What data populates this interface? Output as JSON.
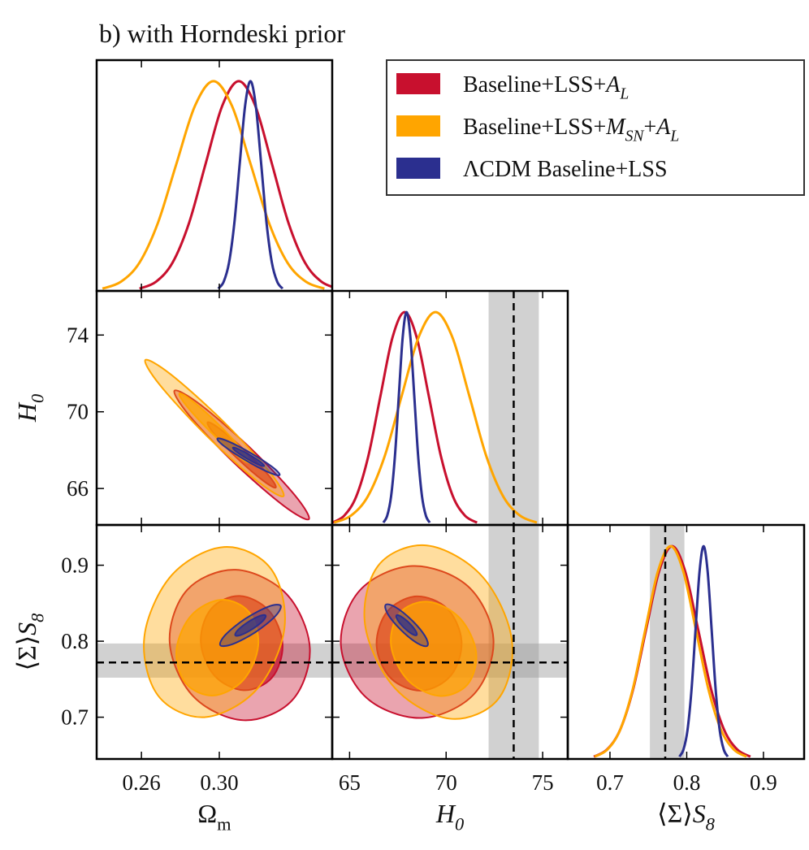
{
  "chart_data": {
    "type": "corner",
    "title": "b) with Horndeski prior",
    "legend": "upper right",
    "density_ylim": [
      0,
      1.1
    ],
    "params": [
      {
        "label": [
          {
            "text": "Ω",
            "sub": "m"
          }
        ],
        "lim": [
          0.237,
          0.358
        ],
        "xticks": [
          0.26,
          {
            "value": 0.3,
            "label": "0.30"
          }
        ]
      },
      {
        "label": [
          {
            "text": "H",
            "sub": "0",
            "italic": true
          }
        ],
        "lim": [
          64.1,
          76.3
        ],
        "xticks": [
          65,
          70,
          75
        ],
        "yticks": [
          66,
          70,
          74
        ],
        "reference": {
          "value": 73.5,
          "band": [
            72.2,
            74.8
          ],
          "axes": [
            "x"
          ]
        }
      },
      {
        "label": [
          {
            "text": "⟨Σ⟩"
          },
          {
            "text": "S",
            "sub": "8",
            "italic": true
          }
        ],
        "lim": [
          0.645,
          0.953
        ],
        "xticks": [
          0.7,
          0.8,
          0.9
        ],
        "yticks": [
          0.7,
          0.8,
          0.9
        ],
        "reference": {
          "value": 0.772,
          "band": [
            0.752,
            0.797
          ],
          "axes": [
            "x",
            "y"
          ]
        }
      }
    ],
    "series": [
      {
        "name": [
          {
            "text": "Baseline+LSS+"
          },
          {
            "text": "A",
            "sub": "L",
            "italic": true
          }
        ],
        "color": "#c8102e",
        "marginals": [
          {
            "x": [
              0.259,
              0.2675,
              0.276,
              0.2845,
              0.293,
              0.3015,
              0.31,
              0.3185,
              0.327,
              0.3355,
              0.344,
              0.3525,
              0.361
            ],
            "values": [
              0.011,
              0.044,
              0.135,
              0.325,
              0.607,
              0.882,
              1,
              0.882,
              0.607,
              0.325,
              0.135,
              0.044,
              0.011
            ]
          },
          {
            "x": [
              64.1,
              64.725,
              65.35,
              65.975,
              66.6,
              67.225,
              67.85,
              68.475,
              69.1,
              69.725,
              70.35,
              70.975,
              71.6
            ],
            "values": [
              0.011,
              0.044,
              0.135,
              0.325,
              0.607,
              0.882,
              1,
              0.882,
              0.607,
              0.325,
              0.135,
              0.044,
              0.011
            ]
          },
          {
            "x": [
              0.679,
              0.696,
              0.713,
              0.73,
              0.747,
              0.764,
              0.781,
              0.798,
              0.815,
              0.832,
              0.849,
              0.866,
              0.883
            ],
            "values": [
              0.011,
              0.044,
              0.135,
              0.325,
              0.607,
              0.882,
              1,
              0.882,
              0.607,
              0.325,
              0.135,
              0.044,
              0.011
            ]
          }
        ],
        "contours": [
          {
            "levels": [
              {
                "x": [
                  0.346,
                  0.3387,
                  0.3155,
                  0.2899,
                  0.277,
                  0.2843,
                  0.3075,
                  0.3331
                ],
                "y": [
                  64.4,
                  65.66,
                  68.15,
                  70.4,
                  71.1,
                  69.84,
                  67.35,
                  65.1
                ]
              },
              {
                "x": [
                  0.329,
                  0.3253,
                  0.3135,
                  0.3005,
                  0.294,
                  0.2977,
                  0.3095,
                  0.3225
                ],
                "y": [
                  66.05,
                  66.69,
                  67.95,
                  69.09,
                  69.45,
                  68.81,
                  67.55,
                  66.41
                ]
              }
            ]
          },
          {
            "levels": [
              {
                "x": [
                  0.3465,
                  0.3345,
                  0.3085,
                  0.2836,
                  0.2745,
                  0.2865,
                  0.3125,
                  0.3374
                ],
                "y": [
                  0.791,
                  0.8622,
                  0.894,
                  0.8678,
                  0.799,
                  0.7278,
                  0.696,
                  0.7222
                ]
              },
              {
                "x": [
                  0.3325,
                  0.3256,
                  0.3105,
                  0.2959,
                  0.2905,
                  0.2974,
                  0.3125,
                  0.3271
                ],
                "y": [
                  0.7955,
                  0.8399,
                  0.8595,
                  0.8428,
                  0.7995,
                  0.7551,
                  0.7355,
                  0.7522
                ]
              }
            ]
          },
          {
            "levels": [
              {
                "x": [
                  72.45,
                  71.12,
                  68.25,
                  65.53,
                  64.55,
                  65.88,
                  68.75,
                  71.47
                ],
                "y": [
                  0.803,
                  0.8725,
                  0.899,
                  0.8669,
                  0.795,
                  0.7255,
                  0.699,
                  0.7311
                ]
              },
              {
                "x": [
                  70.8,
                  70.05,
                  68.45,
                  66.94,
                  66.4,
                  67.15,
                  68.75,
                  70.26
                ],
                "y": [
                  0.8,
                  0.843,
                  0.859,
                  0.8387,
                  0.794,
                  0.751,
                  0.735,
                  0.7553
                ]
              }
            ]
          }
        ]
      },
      {
        "name": [
          {
            "text": "Baseline+LSS+"
          },
          {
            "text": "M",
            "sub": "SN",
            "italic": true
          },
          {
            "text": "+"
          },
          {
            "text": "A",
            "sub": "L",
            "italic": true
          }
        ],
        "color": "#ffa500",
        "marginals": [
          {
            "x": [
              0.24,
              0.2495,
              0.259,
              0.2685,
              0.278,
              0.2875,
              0.297,
              0.3065,
              0.316,
              0.3255,
              0.335,
              0.3445,
              0.354
            ],
            "values": [
              0.011,
              0.044,
              0.135,
              0.325,
              0.607,
              0.882,
              1,
              0.882,
              0.607,
              0.325,
              0.135,
              0.044,
              0.011
            ]
          },
          {
            "x": [
              64.2,
              65.075,
              65.95,
              66.825,
              67.7,
              68.575,
              69.45,
              70.325,
              71.2,
              72.075,
              72.95,
              73.825,
              74.7
            ],
            "values": [
              0.011,
              0.044,
              0.135,
              0.325,
              0.607,
              0.882,
              1,
              0.882,
              0.607,
              0.325,
              0.135,
              0.044,
              0.011
            ]
          },
          {
            "x": [
              0.68,
              0.6965,
              0.713,
              0.7295,
              0.746,
              0.7625,
              0.779,
              0.7955,
              0.812,
              0.8285,
              0.845,
              0.8615,
              0.878
            ],
            "values": [
              0.011,
              0.044,
              0.135,
              0.325,
              0.607,
              0.882,
              1,
              0.882,
              0.607,
              0.325,
              0.135,
              0.044,
              0.011
            ]
          }
        ],
        "contours": [
          {
            "levels": [
              {
                "x": [
                  0.333,
                  0.3254,
                  0.3015,
                  0.2752,
                  0.262,
                  0.2696,
                  0.2935,
                  0.3198
                ],
                "y": [
                  65.6,
                  66.92,
                  69.55,
                  71.94,
                  72.7,
                  71.38,
                  68.75,
                  66.36
                ]
              },
              {
                "x": [
                  0.3155,
                  0.3116,
                  0.2995,
                  0.2862,
                  0.2795,
                  0.2834,
                  0.2955,
                  0.3088
                ],
                "y": [
                  67.35,
                  68.02,
                  69.35,
                  70.56,
                  70.95,
                  70.28,
                  68.95,
                  67.74
                ]
              }
            ]
          },
          {
            "levels": [
              {
                "x": [
                  0.3335,
                  0.3265,
                  0.3025,
                  0.2756,
                  0.2615,
                  0.2685,
                  0.2925,
                  0.3194
                ],
                "y": [
                  0.818,
                  0.8954,
                  0.924,
                  0.887,
                  0.806,
                  0.7286,
                  0.7,
                  0.737
                ]
              },
              {
                "x": [
                  0.32,
                  0.3153,
                  0.301,
                  0.2856,
                  0.278,
                  0.2827,
                  0.297,
                  0.3124
                ],
                "y": [
                  0.7945,
                  0.8382,
                  0.8545,
                  0.8339,
                  0.7885,
                  0.7448,
                  0.7285,
                  0.7491
                ]
              }
            ]
          },
          {
            "levels": [
              {
                "x": [
                  73.4,
                  71.86,
                  69.0,
                  66.49,
                  65.8,
                  67.34,
                  70.2,
                  72.71
                ],
                "y": [
                  0.802,
                  0.8855,
                  0.926,
                  0.8997,
                  0.822,
                  0.7385,
                  0.698,
                  0.7243
                ]
              },
              {
                "x": [
                  71.55,
                  70.69,
                  69.05,
                  67.58,
                  67.15,
                  68.01,
                  69.65,
                  71.12
                ],
                "y": [
                  0.786,
                  0.831,
                  0.852,
                  0.8367,
                  0.794,
                  0.749,
                  0.728,
                  0.7434
                ]
              }
            ]
          }
        ]
      },
      {
        "name": [
          {
            "text": "ΛCDM Baseline+LSS"
          }
        ],
        "color": "#2b2f8f",
        "marginals": [
          {
            "x": [
              0.2995,
              0.30225,
              0.305,
              0.30775,
              0.3105,
              0.31325,
              0.316,
              0.31875,
              0.3215,
              0.32425,
              0.327,
              0.32975,
              0.3325
            ],
            "values": [
              0.011,
              0.044,
              0.135,
              0.325,
              0.607,
              0.882,
              1,
              0.882,
              0.607,
              0.325,
              0.135,
              0.044,
              0.011
            ]
          },
          {
            "x": [
              66.75,
              66.95,
              67.15,
              67.35,
              67.55,
              67.75,
              67.95,
              68.15,
              68.35,
              68.55,
              68.75,
              68.95,
              69.15
            ],
            "values": [
              0.011,
              0.044,
              0.135,
              0.325,
              0.607,
              0.882,
              1,
              0.882,
              0.607,
              0.325,
              0.135,
              0.044,
              0.011
            ]
          },
          {
            "x": [
              0.7905,
              0.79575,
              0.801,
              0.80625,
              0.8115,
              0.81675,
              0.822,
              0.82725,
              0.8325,
              0.83775,
              0.843,
              0.84825,
              0.8535
            ],
            "values": [
              0.011,
              0.044,
              0.135,
              0.325,
              0.607,
              0.882,
              1,
              0.882,
              0.607,
              0.325,
              0.135,
              0.044,
              0.011
            ]
          }
        ],
        "contours": [
          {
            "levels": [
              {
                "x": [
                  0.331,
                  0.3274,
                  0.3165,
                  0.3048,
                  0.299,
                  0.3026,
                  0.3135,
                  0.3252
                ],
                "y": [
                  66.7,
                  67.11,
                  67.83,
                  68.45,
                  68.6,
                  68.2,
                  67.47,
                  66.85
                ]
              },
              {
                "x": [
                  0.323,
                  0.3212,
                  0.3158,
                  0.3099,
                  0.307,
                  0.3088,
                  0.3142,
                  0.3201
                ],
                "y": [
                  67.17,
                  67.38,
                  67.74,
                  68.05,
                  68.13,
                  67.92,
                  67.56,
                  67.25
                ]
              }
            ]
          },
          {
            "levels": [
              {
                "x": [
                  0.3315,
                  0.3287,
                  0.3185,
                  0.3068,
                  0.3005,
                  0.3033,
                  0.3135,
                  0.3252
                ],
                "y": [
                  0.8468,
                  0.8328,
                  0.8118,
                  0.7961,
                  0.7948,
                  0.8088,
                  0.8298,
                  0.8455
                ]
              },
              {
                "x": [
                  0.3238,
                  0.3224,
                  0.3172,
                  0.3113,
                  0.3082,
                  0.3096,
                  0.3148,
                  0.3207
                ],
                "y": [
                  0.8338,
                  0.8268,
                  0.8163,
                  0.8084,
                  0.8078,
                  0.8148,
                  0.8253,
                  0.8332
                ]
              }
            ]
          },
          {
            "levels": [
              {
                "x": [
                  69.03,
                  68.91,
                  68.22,
                  67.38,
                  66.87,
                  66.99,
                  67.68,
                  68.52
                ],
                "y": [
                  0.794,
                  0.8067,
                  0.8277,
                  0.8448,
                  0.848,
                  0.8353,
                  0.8143,
                  0.7972
                ]
              },
              {
                "x": [
                  68.47,
                  68.41,
                  68.08,
                  67.67,
                  67.43,
                  67.49,
                  67.82,
                  68.23
                ],
                "y": [
                  0.808,
                  0.8141,
                  0.8242,
                  0.8325,
                  0.834,
                  0.8279,
                  0.8178,
                  0.8096
                ]
              }
            ]
          }
        ]
      }
    ]
  }
}
